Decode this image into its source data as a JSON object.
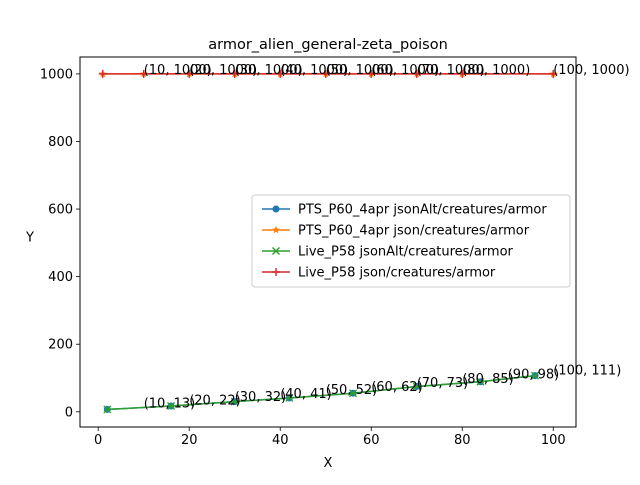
{
  "chart_data": {
    "type": "line",
    "title": "armor_alien_general-zeta_poison",
    "xlabel": "X",
    "ylabel": "Y",
    "xlim": [
      -4,
      105
    ],
    "ylim": [
      -45,
      1050
    ],
    "xticks": [
      0,
      20,
      40,
      60,
      80,
      100
    ],
    "yticks": [
      0,
      200,
      400,
      600,
      800,
      1000
    ],
    "grid": false,
    "legend_position": "center-right",
    "series": [
      {
        "name": "PTS_P60_4apr jsonAlt/creatures/armor",
        "color": "#1f77b4",
        "marker": "circle",
        "points": [
          [
            2,
            7
          ],
          [
            16,
            17
          ],
          [
            30,
            30
          ],
          [
            42,
            41
          ],
          [
            56,
            55
          ],
          [
            70,
            75
          ],
          [
            84,
            89
          ],
          [
            96,
            107
          ]
        ]
      },
      {
        "name": "PTS_P60_4apr json/creatures/armor",
        "color": "#ff7f0e",
        "marker": "star",
        "points": [
          [
            1,
            1000
          ],
          [
            10,
            1000
          ],
          [
            20,
            1000
          ],
          [
            30,
            1000
          ],
          [
            40,
            1000
          ],
          [
            50,
            1000
          ],
          [
            60,
            1000
          ],
          [
            70,
            1000
          ],
          [
            80,
            1000
          ],
          [
            100,
            1000
          ]
        ]
      },
      {
        "name": "Live_P58 jsonAlt/creatures/armor",
        "color": "#2ca02c",
        "marker": "x",
        "points": [
          [
            2,
            7
          ],
          [
            16,
            17
          ],
          [
            30,
            30
          ],
          [
            42,
            41
          ],
          [
            56,
            55
          ],
          [
            70,
            75
          ],
          [
            84,
            89
          ],
          [
            96,
            107
          ]
        ]
      },
      {
        "name": "Live_P58 json/creatures/armor",
        "color": "#d62728",
        "marker": "plus",
        "points": [
          [
            1,
            1000
          ],
          [
            10,
            1000
          ],
          [
            20,
            1000
          ],
          [
            30,
            1000
          ],
          [
            40,
            1000
          ],
          [
            50,
            1000
          ],
          [
            60,
            1000
          ],
          [
            70,
            1000
          ],
          [
            80,
            1000
          ],
          [
            100,
            1000
          ]
        ]
      }
    ],
    "annotations": [
      {
        "text": "(10, 1000)",
        "x": 10,
        "y": 1000
      },
      {
        "text": "(20, 1000)",
        "x": 20,
        "y": 1000
      },
      {
        "text": "(30, 1000)",
        "x": 30,
        "y": 1000
      },
      {
        "text": "(40, 1000)",
        "x": 40,
        "y": 1000
      },
      {
        "text": "(50, 1000)",
        "x": 50,
        "y": 1000
      },
      {
        "text": "(60, 1000)",
        "x": 60,
        "y": 1000
      },
      {
        "text": "(70, 1000)",
        "x": 70,
        "y": 1000
      },
      {
        "text": "(80, 1000)",
        "x": 80,
        "y": 1000
      },
      {
        "text": "(100, 1000)",
        "x": 100,
        "y": 1000
      },
      {
        "text": "(10, 13)",
        "x": 10,
        "y": 13
      },
      {
        "text": "(20, 22)",
        "x": 20,
        "y": 22
      },
      {
        "text": "(30, 32)",
        "x": 30,
        "y": 32
      },
      {
        "text": "(40, 41)",
        "x": 40,
        "y": 41
      },
      {
        "text": "(50, 52)",
        "x": 50,
        "y": 52
      },
      {
        "text": "(60, 62)",
        "x": 60,
        "y": 62
      },
      {
        "text": "(70, 73)",
        "x": 70,
        "y": 73
      },
      {
        "text": "(80, 85)",
        "x": 80,
        "y": 85
      },
      {
        "text": "(90, 98)",
        "x": 90,
        "y": 98
      },
      {
        "text": "(100, 111)",
        "x": 100,
        "y": 111
      }
    ]
  }
}
